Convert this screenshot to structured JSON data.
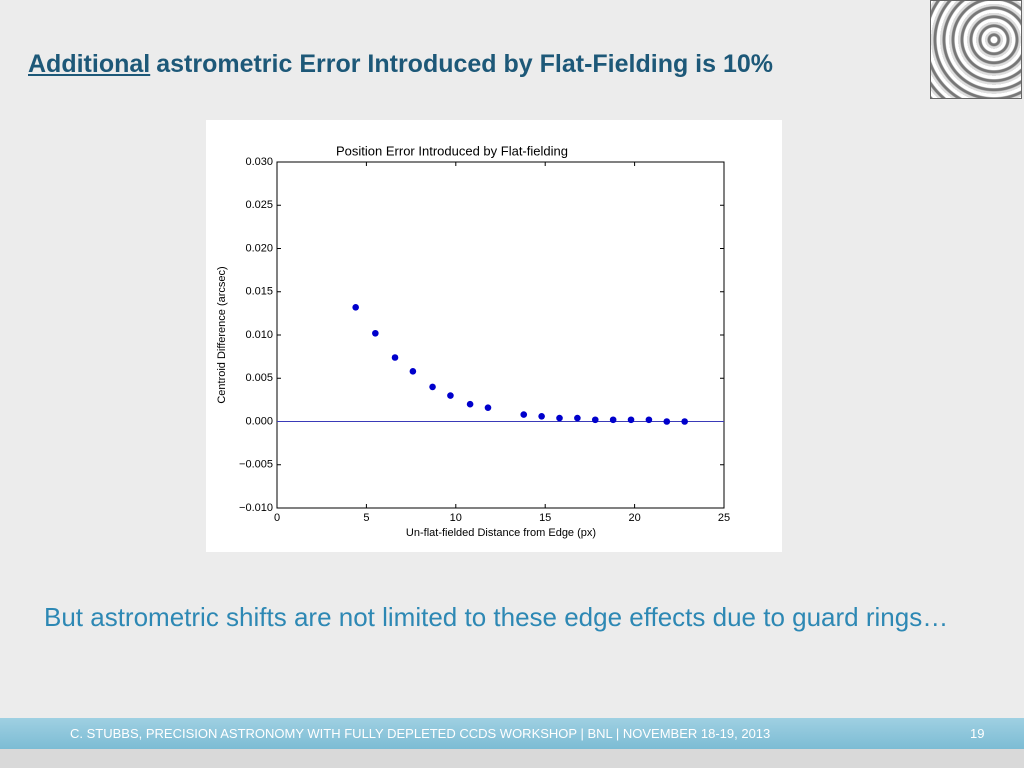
{
  "slide": {
    "title_underlined": "Additional",
    "title_rest": "astrometric Error Introduced by Flat-Fielding is 10%",
    "body": "But astrometric shifts are not limited to these edge effects due to guard rings…",
    "footer": "C. STUBBS, PRECISION ASTRONOMY WITH FULLY DEPLETED CCDS WORKSHOP  | BNL | NOVEMBER 18-19, 2013",
    "page_number": "19"
  },
  "chart_data": {
    "type": "scatter",
    "title": "Position Error Introduced by Flat-fielding",
    "x_label": "Un-flat-fielded Distance from Edge (px)",
    "y_label": "Centroid Difference (arcsec)",
    "x": [
      4.4,
      5.5,
      6.6,
      7.6,
      8.7,
      9.7,
      10.8,
      11.8,
      13.8,
      14.8,
      15.8,
      16.8,
      17.8,
      18.8,
      19.8,
      20.8,
      21.8,
      22.8
    ],
    "values": [
      0.0132,
      0.0102,
      0.0074,
      0.0058,
      0.004,
      0.003,
      0.002,
      0.0016,
      0.0008,
      0.0006,
      0.0004,
      0.0004,
      0.0002,
      0.0002,
      0.0002,
      0.0002,
      0.0,
      0.0
    ],
    "color": "#0000cc",
    "reference_line": 0,
    "reference_color": "#3a3ab8",
    "xlim": [
      0,
      25
    ],
    "ylim": [
      -0.01,
      0.03
    ],
    "xticks": [
      0,
      5,
      10,
      15,
      20,
      25
    ],
    "yticks": [
      {
        "value": -0.01,
        "label": "−0.010"
      },
      {
        "value": -0.005,
        "label": "−0.005"
      },
      {
        "value": 0,
        "label": "0.000"
      },
      {
        "value": 0.005,
        "label": "0.005"
      },
      {
        "value": 0.01,
        "label": "0.010"
      },
      {
        "value": 0.015,
        "label": "0.015"
      },
      {
        "value": 0.02,
        "label": "0.020"
      },
      {
        "value": 0.025,
        "label": "0.025"
      },
      {
        "value": 0.03,
        "label": "0.030"
      }
    ]
  }
}
